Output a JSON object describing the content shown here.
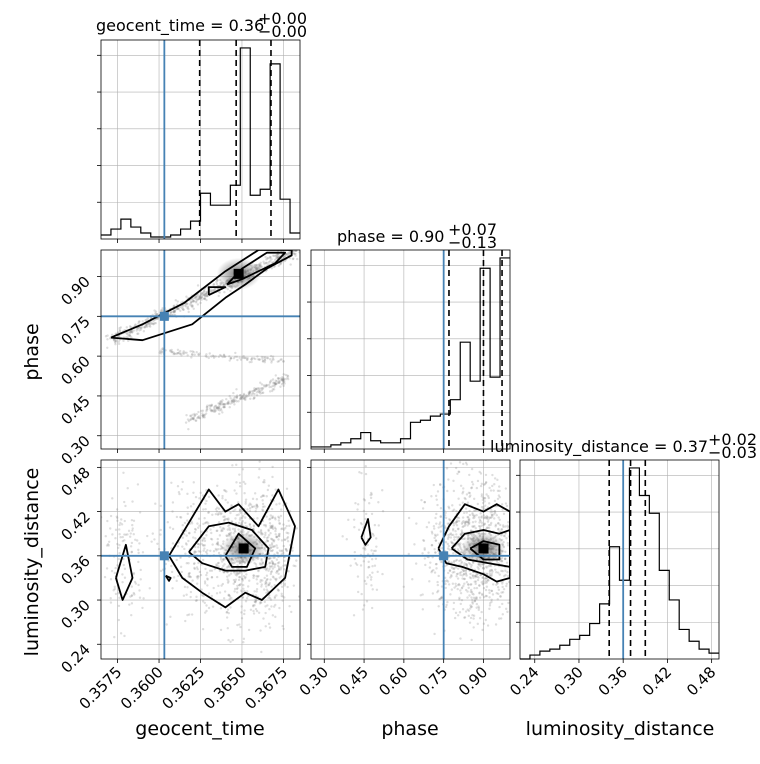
{
  "chart_data": {
    "type": "corner",
    "parameters": [
      "geocent_time",
      "phase",
      "luminosity_distance"
    ],
    "truths": {
      "geocent_time": 0.36032,
      "phase": 0.75,
      "luminosity_distance": 0.36
    },
    "titles": {
      "geocent_time": {
        "name": "geocent_time",
        "median": "0.36",
        "plus": "+0.00",
        "minus": "−0.00"
      },
      "phase": {
        "name": "phase",
        "median": "0.90",
        "plus": "+0.07",
        "minus": "−0.13"
      },
      "luminosity_distance": {
        "name": "luminosity_distance",
        "median": "0.37",
        "plus": "+0.02",
        "minus": "−0.03"
      }
    },
    "ranges": {
      "geocent_time": [
        0.3565,
        0.3685
      ],
      "phase": [
        0.25,
        1.0
      ],
      "luminosity_distance": [
        0.22,
        0.49
      ]
    },
    "ticks": {
      "geocent_time": [
        "0.3575",
        "0.3600",
        "0.3625",
        "0.3650",
        "0.3675"
      ],
      "phase": [
        "0.30",
        "0.45",
        "0.60",
        "0.75",
        "0.90"
      ],
      "luminosity_distance": [
        "0.24",
        "0.30",
        "0.36",
        "0.42",
        "0.48"
      ]
    },
    "histograms": {
      "geocent_time": {
        "bin_edges": [
          0.3565,
          0.3571,
          0.3577,
          0.3583,
          0.3589,
          0.3595,
          0.3601,
          0.3607,
          0.3613,
          0.3619,
          0.3625,
          0.3631,
          0.3637,
          0.3643,
          0.3649,
          0.3655,
          0.3661,
          0.3667,
          0.3673,
          0.3679,
          0.3685
        ],
        "counts": [
          0.02,
          0.05,
          0.1,
          0.06,
          0.03,
          0.01,
          0.01,
          0.02,
          0.05,
          0.09,
          0.23,
          0.17,
          0.17,
          0.27,
          0.96,
          0.22,
          0.25,
          0.88,
          0.2,
          0.03
        ],
        "quantiles": [
          0.36245,
          0.36465,
          0.36675
        ]
      },
      "phase": {
        "bin_edges": [
          0.25,
          0.2875,
          0.325,
          0.3625,
          0.4,
          0.4375,
          0.475,
          0.5125,
          0.55,
          0.5875,
          0.625,
          0.6625,
          0.7,
          0.7375,
          0.775,
          0.8125,
          0.85,
          0.8875,
          0.925,
          0.9625,
          1.0
        ],
        "counts": [
          0.01,
          0.01,
          0.02,
          0.03,
          0.05,
          0.08,
          0.04,
          0.03,
          0.03,
          0.05,
          0.13,
          0.14,
          0.16,
          0.17,
          0.24,
          0.52,
          0.33,
          0.88,
          0.35,
          0.93
        ],
        "quantiles": [
          0.77,
          0.9,
          0.97
        ]
      },
      "luminosity_distance": {
        "bin_edges": [
          0.22,
          0.2335,
          0.247,
          0.2605,
          0.274,
          0.2875,
          0.301,
          0.3145,
          0.328,
          0.3415,
          0.355,
          0.3685,
          0.382,
          0.3955,
          0.409,
          0.4225,
          0.436,
          0.4495,
          0.463,
          0.4765,
          0.49
        ],
        "counts": [
          0.0,
          0.02,
          0.04,
          0.05,
          0.07,
          0.1,
          0.12,
          0.18,
          0.28,
          0.57,
          0.4,
          0.97,
          0.83,
          0.74,
          0.45,
          0.3,
          0.15,
          0.09,
          0.05,
          0.03
        ],
        "quantiles": [
          0.341,
          0.37,
          0.39
        ]
      }
    },
    "contours": {
      "phase_vs_geocent_time": {
        "peak": [
          0.3648,
          0.91
        ],
        "levels": [
          [
            [
              0.3571,
              0.67
            ],
            [
              0.359,
              0.66
            ],
            [
              0.362,
              0.72
            ],
            [
              0.364,
              0.82
            ],
            [
              0.3652,
              0.87
            ],
            [
              0.3665,
              0.93
            ],
            [
              0.368,
              0.98
            ],
            [
              0.368,
              1.0
            ],
            [
              0.366,
              1.0
            ],
            [
              0.364,
              0.92
            ],
            [
              0.3615,
              0.8
            ],
            [
              0.359,
              0.72
            ],
            [
              0.3571,
              0.67
            ]
          ],
          [
            [
              0.363,
              0.83
            ],
            [
              0.364,
              0.86
            ],
            [
              0.363,
              0.86
            ],
            [
              0.363,
              0.83
            ]
          ],
          [
            [
              0.3641,
              0.87
            ],
            [
              0.365,
              0.89
            ],
            [
              0.367,
              0.95
            ],
            [
              0.3676,
              0.99
            ],
            [
              0.3665,
              0.99
            ],
            [
              0.365,
              0.93
            ],
            [
              0.3641,
              0.87
            ]
          ]
        ]
      },
      "luminosity_distance_vs_geocent_time": {
        "peak": [
          0.3651,
          0.37
        ],
        "levels": [
          [
            [
              0.3574,
              0.33
            ],
            [
              0.358,
              0.375
            ],
            [
              0.3584,
              0.33
            ],
            [
              0.3578,
              0.3
            ],
            [
              0.3574,
              0.33
            ]
          ],
          [
            [
              0.3604,
              0.333
            ],
            [
              0.3607,
              0.33
            ],
            [
              0.3606,
              0.326
            ],
            [
              0.3604,
              0.333
            ]
          ],
          [
            [
              0.3606,
              0.36
            ],
            [
              0.3614,
              0.39
            ],
            [
              0.363,
              0.45
            ],
            [
              0.364,
              0.42
            ],
            [
              0.3648,
              0.43
            ],
            [
              0.366,
              0.4
            ],
            [
              0.3672,
              0.45
            ],
            [
              0.3682,
              0.4
            ],
            [
              0.3676,
              0.33
            ],
            [
              0.3662,
              0.3
            ],
            [
              0.3652,
              0.31
            ],
            [
              0.364,
              0.29
            ],
            [
              0.3626,
              0.31
            ],
            [
              0.3614,
              0.33
            ],
            [
              0.3606,
              0.36
            ]
          ],
          [
            [
              0.3618,
              0.365
            ],
            [
              0.363,
              0.4
            ],
            [
              0.3642,
              0.405
            ],
            [
              0.3656,
              0.395
            ],
            [
              0.3666,
              0.37
            ],
            [
              0.3664,
              0.345
            ],
            [
              0.3652,
              0.34
            ],
            [
              0.364,
              0.34
            ],
            [
              0.3626,
              0.35
            ],
            [
              0.3618,
              0.365
            ]
          ],
          [
            [
              0.364,
              0.36
            ],
            [
              0.3648,
              0.39
            ],
            [
              0.3658,
              0.37
            ],
            [
              0.3653,
              0.345
            ],
            [
              0.3644,
              0.345
            ],
            [
              0.364,
              0.36
            ]
          ]
        ]
      },
      "luminosity_distance_vs_phase": {
        "peak": [
          0.9,
          0.37
        ],
        "levels": [
          [
            [
              0.44,
              0.385
            ],
            [
              0.465,
              0.41
            ],
            [
              0.475,
              0.385
            ],
            [
              0.455,
              0.375
            ],
            [
              0.44,
              0.385
            ]
          ],
          [
            [
              0.73,
              0.37
            ],
            [
              0.77,
              0.4
            ],
            [
              0.83,
              0.43
            ],
            [
              0.9,
              0.42
            ],
            [
              0.95,
              0.43
            ],
            [
              1.0,
              0.42
            ],
            [
              1.0,
              0.33
            ],
            [
              0.95,
              0.325
            ],
            [
              0.9,
              0.335
            ],
            [
              0.82,
              0.345
            ],
            [
              0.76,
              0.35
            ],
            [
              0.73,
              0.37
            ]
          ],
          [
            [
              0.78,
              0.37
            ],
            [
              0.83,
              0.39
            ],
            [
              0.9,
              0.395
            ],
            [
              0.96,
              0.39
            ],
            [
              1.0,
              0.395
            ],
            [
              1.0,
              0.345
            ],
            [
              0.92,
              0.35
            ],
            [
              0.84,
              0.355
            ],
            [
              0.78,
              0.37
            ]
          ],
          [
            [
              0.85,
              0.37
            ],
            [
              0.9,
              0.38
            ],
            [
              0.96,
              0.375
            ],
            [
              0.96,
              0.355
            ],
            [
              0.9,
              0.355
            ],
            [
              0.85,
              0.37
            ]
          ]
        ]
      }
    },
    "colors": {
      "truth": "#4682b4",
      "lines": "#000000",
      "samples": "#888888"
    }
  }
}
